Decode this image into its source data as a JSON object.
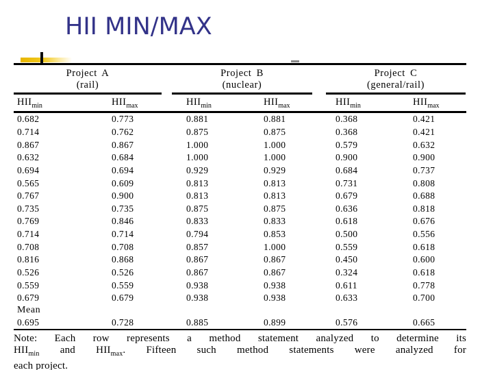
{
  "slide": {
    "title": "HII MIN/MAX"
  },
  "colors": {
    "title": "#333389",
    "accent_yellow": "#e7b500",
    "rule": "#000000"
  },
  "table": {
    "groups": [
      {
        "name": "Project A",
        "subtitle": "(rail)"
      },
      {
        "name": "Project B",
        "subtitle": "(nuclear)"
      },
      {
        "name": "Project C",
        "subtitle": "(general/rail)"
      }
    ],
    "col_headers": [
      {
        "base": "HII",
        "sub": "min"
      },
      {
        "base": "HII",
        "sub": "max"
      },
      {
        "base": "HII",
        "sub": "min"
      },
      {
        "base": "HII",
        "sub": "max"
      },
      {
        "base": "HII",
        "sub": "min"
      },
      {
        "base": "HII",
        "sub": "max"
      }
    ],
    "rows": [
      [
        "0.682",
        "0.773",
        "0.881",
        "0.881",
        "0.368",
        "0.421"
      ],
      [
        "0.714",
        "0.762",
        "0.875",
        "0.875",
        "0.368",
        "0.421"
      ],
      [
        "0.867",
        "0.867",
        "1.000",
        "1.000",
        "0.579",
        "0.632"
      ],
      [
        "0.632",
        "0.684",
        "1.000",
        "1.000",
        "0.900",
        "0.900"
      ],
      [
        "0.694",
        "0.694",
        "0.929",
        "0.929",
        "0.684",
        "0.737"
      ],
      [
        "0.565",
        "0.609",
        "0.813",
        "0.813",
        "0.731",
        "0.808"
      ],
      [
        "0.767",
        "0.900",
        "0.813",
        "0.813",
        "0.679",
        "0.688"
      ],
      [
        "0.735",
        "0.735",
        "0.875",
        "0.875",
        "0.636",
        "0.818"
      ],
      [
        "0.769",
        "0.846",
        "0.833",
        "0.833",
        "0.618",
        "0.676"
      ],
      [
        "0.714",
        "0.714",
        "0.794",
        "0.853",
        "0.500",
        "0.556"
      ],
      [
        "0.708",
        "0.708",
        "0.857",
        "1.000",
        "0.559",
        "0.618"
      ],
      [
        "0.816",
        "0.868",
        "0.867",
        "0.867",
        "0.450",
        "0.600"
      ],
      [
        "0.526",
        "0.526",
        "0.867",
        "0.867",
        "0.324",
        "0.618"
      ],
      [
        "0.559",
        "0.559",
        "0.938",
        "0.938",
        "0.611",
        "0.778"
      ],
      [
        "0.679",
        "0.679",
        "0.938",
        "0.938",
        "0.633",
        "0.700"
      ]
    ],
    "mean_label": "Mean",
    "mean_row": [
      "0.695",
      "0.728",
      "0.885",
      "0.899",
      "0.576",
      "0.665"
    ]
  },
  "note": {
    "lines": [
      [
        {
          "text": "Note: Each row represents a method statement analyzed to determine its"
        }
      ],
      [
        {
          "text": "HII",
          "sub": "min"
        },
        {
          "text": " and "
        },
        {
          "text": "HII",
          "sub": "max"
        },
        {
          "text": ". Fifteen such method statements were analyzed for"
        }
      ],
      [
        {
          "text": "each project."
        }
      ]
    ]
  }
}
